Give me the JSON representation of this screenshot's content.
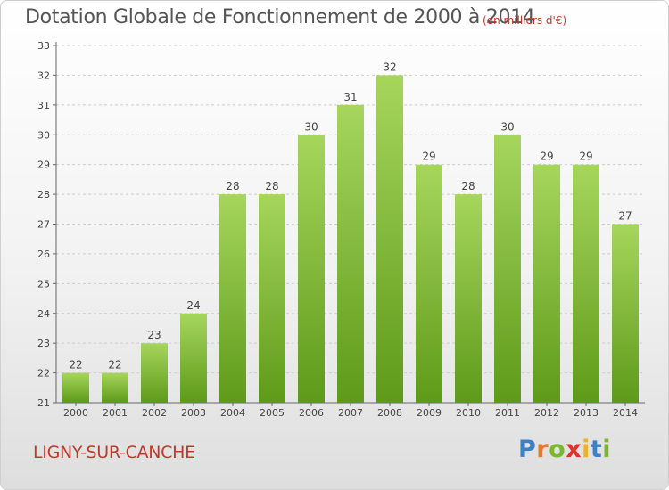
{
  "chart_data": {
    "type": "bar",
    "title": "Dotation Globale de Fonctionnement de 2000 à 2014",
    "subtitle": "(en milliers d'€)",
    "categories": [
      "2000",
      "2001",
      "2002",
      "2003",
      "2004",
      "2005",
      "2006",
      "2007",
      "2008",
      "2009",
      "2010",
      "2011",
      "2012",
      "2013",
      "2014"
    ],
    "values": [
      22,
      22,
      23,
      24,
      28,
      28,
      30,
      31,
      32,
      29,
      28,
      30,
      29,
      29,
      27
    ],
    "yticks": [
      21,
      22,
      23,
      24,
      25,
      26,
      27,
      28,
      29,
      30,
      31,
      32,
      33
    ],
    "ylim": [
      21,
      33
    ],
    "grid": true,
    "legend": "none",
    "bar_color": "#7cb82f"
  },
  "footer": {
    "commune": "LIGNY-SUR-CANCHE",
    "logo_letters": [
      {
        "ch": "P",
        "color": "#3f7fc4"
      },
      {
        "ch": "r",
        "color": "#e8792b"
      },
      {
        "ch": "o",
        "color": "#7cb82f"
      },
      {
        "ch": "x",
        "color": "#e0312b"
      },
      {
        "ch": "i",
        "color": "#e8b32b"
      },
      {
        "ch": "t",
        "color": "#3f7fc4"
      },
      {
        "ch": "i",
        "color": "#7cb82f"
      }
    ]
  }
}
